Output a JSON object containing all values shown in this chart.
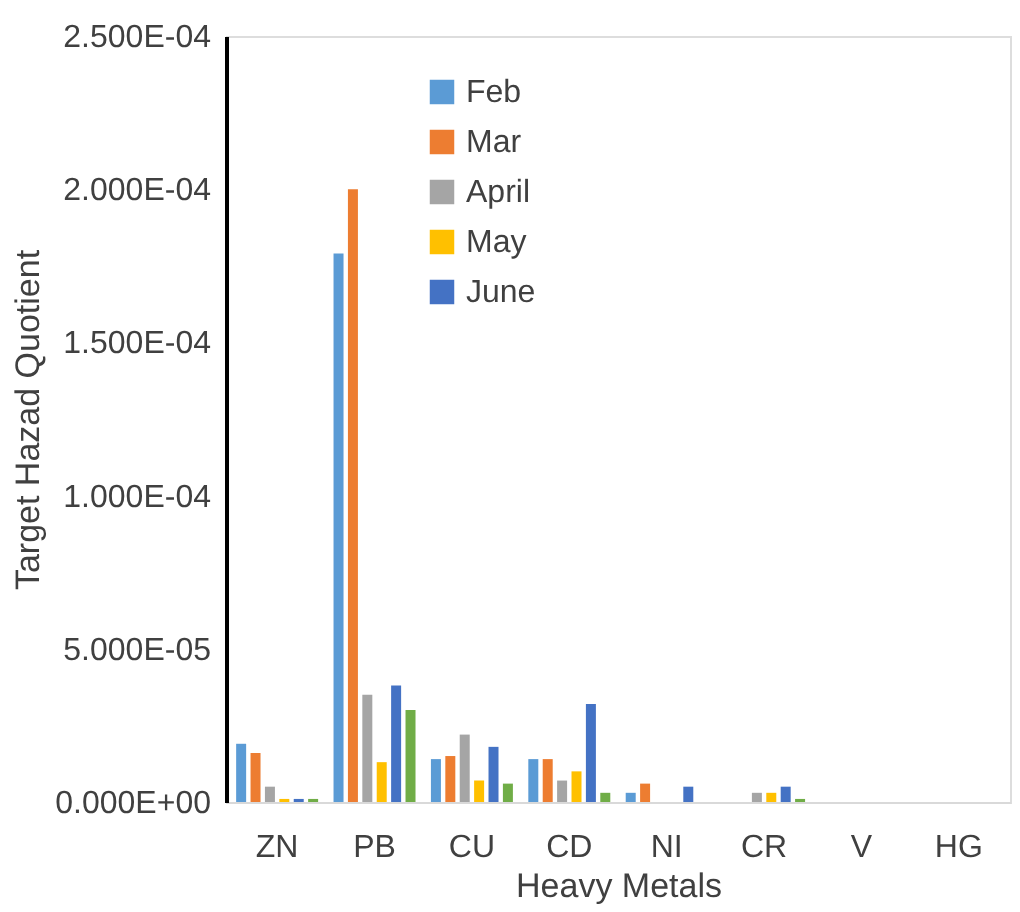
{
  "chart_data": {
    "type": "bar",
    "xlabel": "Heavy Metals",
    "ylabel": "Target Hazad Quotient",
    "categories": [
      "ZN",
      "PB",
      "CU",
      "CD",
      "NI",
      "CR",
      "V",
      "HG"
    ],
    "series": [
      {
        "name": "Feb",
        "color": "#5b9bd5",
        "values": [
          1.9e-05,
          0.000179,
          1.4e-05,
          1.4e-05,
          3e-06,
          0,
          0,
          0
        ]
      },
      {
        "name": "Mar",
        "color": "#ed7d31",
        "values": [
          1.6e-05,
          0.0002,
          1.5e-05,
          1.4e-05,
          6e-06,
          0,
          0,
          0
        ]
      },
      {
        "name": "April",
        "color": "#a5a5a5",
        "values": [
          5e-06,
          3.5e-05,
          2.2e-05,
          7e-06,
          0,
          3e-06,
          0,
          0
        ]
      },
      {
        "name": "May",
        "color": "#ffc000",
        "values": [
          1e-06,
          1.3e-05,
          7e-06,
          1e-05,
          0,
          3e-06,
          0,
          0
        ]
      },
      {
        "name": "June",
        "color": "#4472c4",
        "values": [
          1e-06,
          3.8e-05,
          1.8e-05,
          3.2e-05,
          5e-06,
          5e-06,
          0,
          0
        ]
      },
      {
        "color": "#70ad47",
        "values": [
          1e-06,
          3e-05,
          6e-06,
          3e-06,
          0,
          1e-06,
          0,
          0
        ]
      }
    ],
    "ylim": [
      0,
      0.00025
    ],
    "yticks": [
      {
        "value": 0,
        "label": "0.000E+00"
      },
      {
        "value": 5e-05,
        "label": "5.000E-05"
      },
      {
        "value": 0.0001,
        "label": "1.000E-04"
      },
      {
        "value": 0.00015,
        "label": "1.500E-04"
      },
      {
        "value": 0.0002,
        "label": "2.000E-04"
      },
      {
        "value": 0.00025,
        "label": "2.500E-04"
      }
    ],
    "grid": false,
    "legend": "top"
  }
}
